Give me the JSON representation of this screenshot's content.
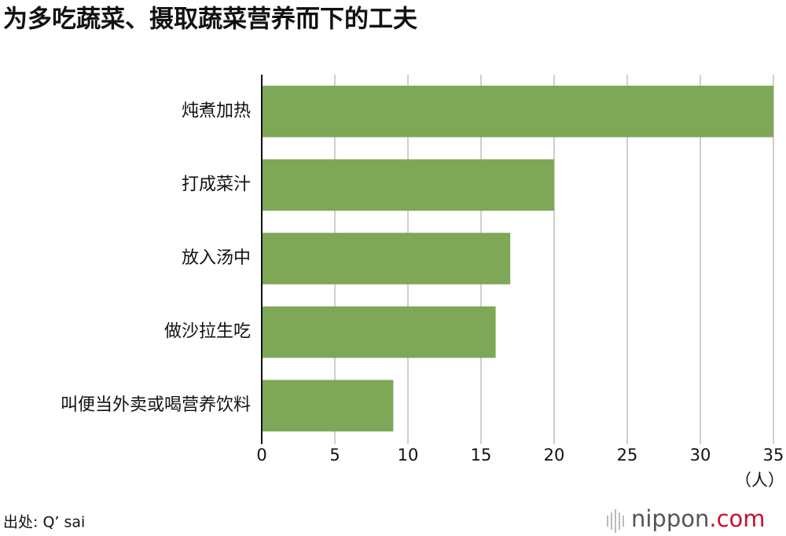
{
  "chart_data": {
    "type": "barh",
    "title": "为多吃蔬菜、摄取蔬菜营养而下的工夫",
    "categories": [
      "炖煮加热",
      "打成菜汁",
      "放入汤中",
      "做沙拉生吃",
      "叫便当外卖或喝营养饮料"
    ],
    "values": [
      35,
      20,
      17,
      16,
      9
    ],
    "color": "#7ea757",
    "xlim": [
      0,
      35
    ],
    "xticks": [
      0,
      5,
      10,
      15,
      20,
      25,
      30,
      35
    ],
    "x_label": "（人）",
    "grid": true,
    "source": "出处: Q’ sai",
    "logo": {
      "name": "nippon",
      "suffix": ".com"
    }
  }
}
